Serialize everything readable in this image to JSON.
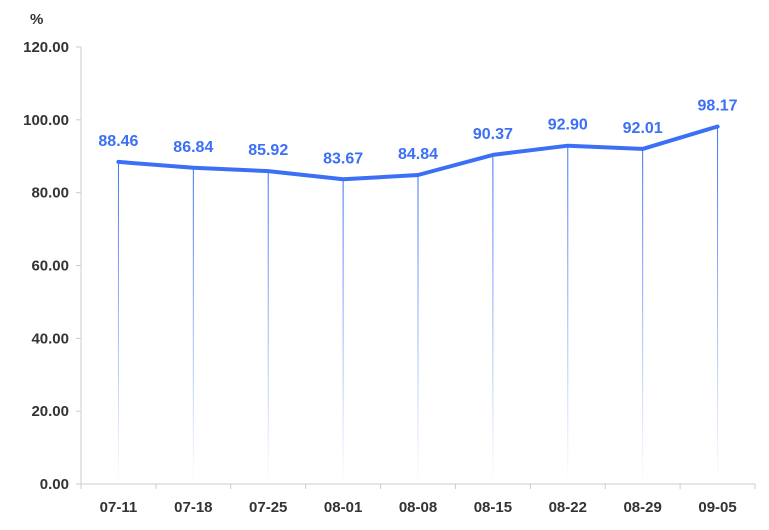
{
  "chart_data": {
    "type": "line",
    "unit_label": "%",
    "categories": [
      "07-11",
      "07-18",
      "07-25",
      "08-01",
      "08-08",
      "08-15",
      "08-22",
      "08-29",
      "09-05"
    ],
    "values": [
      88.46,
      86.84,
      85.92,
      83.67,
      84.84,
      90.37,
      92.9,
      92.01,
      98.17
    ],
    "value_labels": [
      "88.46",
      "86.84",
      "85.92",
      "83.67",
      "84.84",
      "90.37",
      "92.90",
      "92.01",
      "98.17"
    ],
    "y_ticks": [
      "0.00",
      "20.00",
      "40.00",
      "60.00",
      "80.00",
      "100.00",
      "120.00"
    ],
    "ylim": [
      0,
      120
    ],
    "grid": false,
    "line_color": "#3b6ff5",
    "drop_line_color": "#3b6ff5"
  }
}
